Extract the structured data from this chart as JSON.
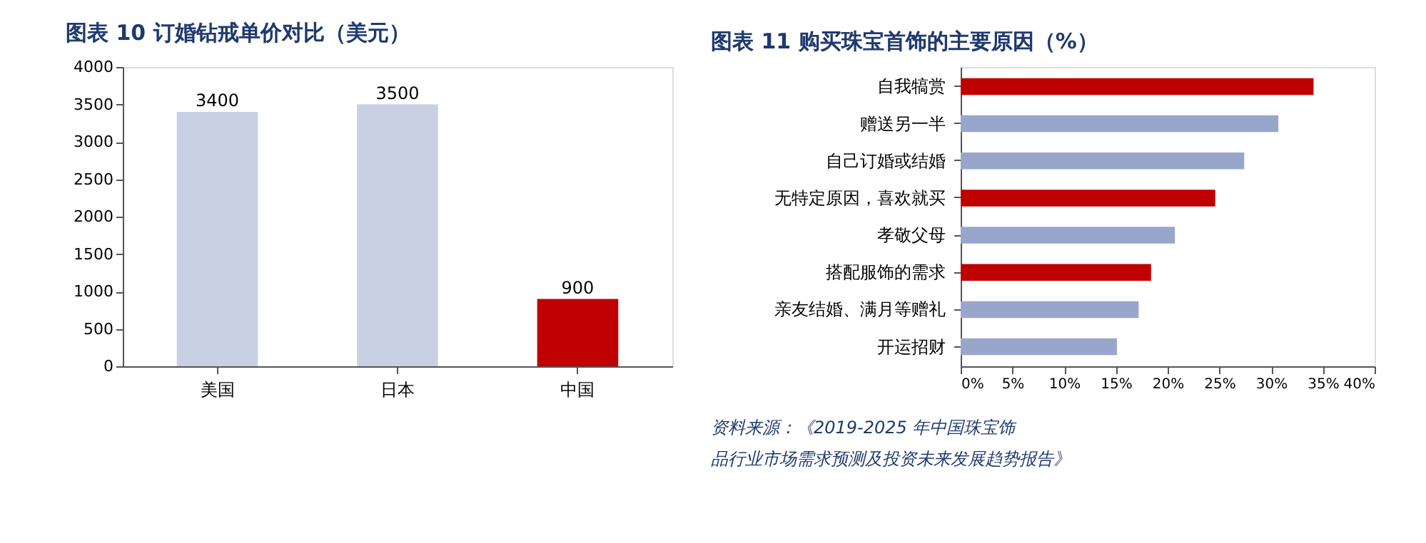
{
  "chart_data": [
    {
      "type": "bar",
      "title": "图表 10   订婚钻戒单价对比（美元）",
      "categories": [
        "美国",
        "日本",
        "中国"
      ],
      "values": [
        3400,
        3500,
        900
      ],
      "colors": [
        "#c9d0e3",
        "#c9d0e3",
        "#c00000"
      ],
      "ylim": [
        0,
        4000
      ],
      "yticks": [
        0,
        500,
        1000,
        1500,
        2000,
        2500,
        3000,
        3500,
        4000
      ],
      "data_labels": true,
      "grid": false
    },
    {
      "type": "bar",
      "orientation": "horizontal",
      "title": "图表 11   购买珠宝首饰的主要原因（%）",
      "categories": [
        "自我犒赏",
        "赠送另一半",
        "自己订婚或结婚",
        "无特定原因，喜欢就买",
        "孝敬父母",
        "搭配服饰的需求",
        "亲友结婚、满月等赠礼",
        "开运招财"
      ],
      "values": [
        34.1,
        30.7,
        27.4,
        24.6,
        20.7,
        18.4,
        17.2,
        15.1
      ],
      "colors": [
        "#c00000",
        "#99a6cc",
        "#99a6cc",
        "#c00000",
        "#99a6cc",
        "#c00000",
        "#99a6cc",
        "#99a6cc"
      ],
      "xlim": [
        0,
        40
      ],
      "xticks": [
        {
          "value": 0,
          "label": "0%"
        },
        {
          "value": 5,
          "label": "5%"
        },
        {
          "value": 10,
          "label": "10%"
        },
        {
          "value": 15,
          "label": "15%"
        },
        {
          "value": 20,
          "label": "20%"
        },
        {
          "value": 25,
          "label": "25%"
        },
        {
          "value": 30,
          "label": "30%"
        },
        {
          "value": 35,
          "label": "35%"
        },
        {
          "value": 40,
          "label": "40%"
        }
      ],
      "grid": false,
      "annotations": [
        "资料来源：《2019-2025 年中国珠宝饰品行业市场需求预测及投资未来发展趋势报告》"
      ]
    }
  ]
}
